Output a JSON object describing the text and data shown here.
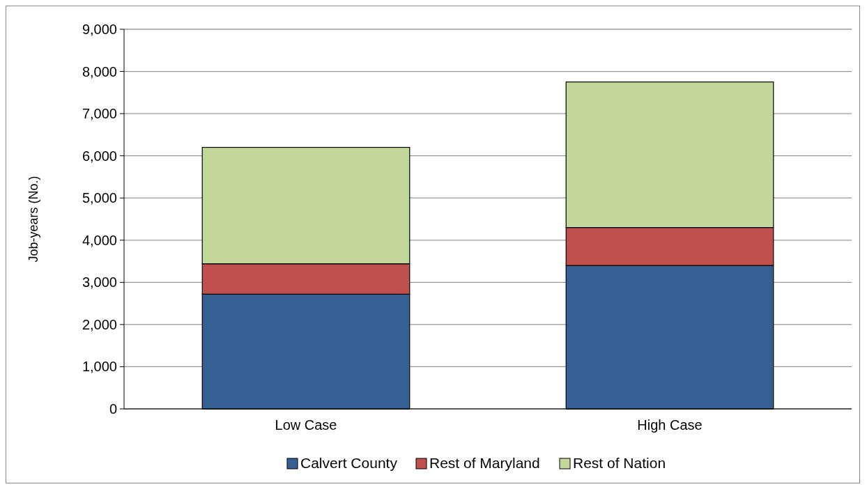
{
  "chart_data": {
    "type": "bar",
    "stacked": true,
    "ylabel": "Job-years (No.)",
    "categories": [
      "Low Case",
      "High Case"
    ],
    "series": [
      {
        "name": "Calvert County",
        "color": "#366092",
        "values": [
          2720,
          3400
        ]
      },
      {
        "name": "Rest of Maryland",
        "color": "#c0504d",
        "values": [
          720,
          900
        ]
      },
      {
        "name": "Rest of Nation",
        "color": "#c4d79b",
        "values": [
          2760,
          3450
        ]
      }
    ],
    "ylim": [
      0,
      9000
    ],
    "yticks": [
      {
        "value": 0,
        "label": "0"
      },
      {
        "value": 1000,
        "label": "1,000"
      },
      {
        "value": 2000,
        "label": "2,000"
      },
      {
        "value": 3000,
        "label": "3,000"
      },
      {
        "value": 4000,
        "label": "4,000"
      },
      {
        "value": 5000,
        "label": "5,000"
      },
      {
        "value": 6000,
        "label": "6,000"
      },
      {
        "value": 7000,
        "label": "7,000"
      },
      {
        "value": 8000,
        "label": "8,000"
      },
      {
        "value": 9000,
        "label": "9,000"
      }
    ],
    "grid": "y",
    "legend": "bottom"
  }
}
